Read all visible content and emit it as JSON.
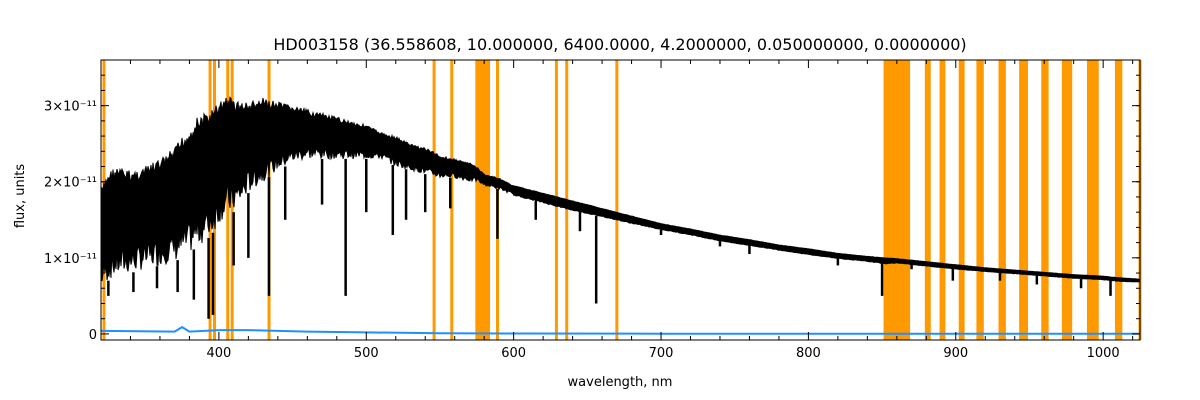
{
  "chart_data": {
    "type": "line",
    "title": "HD003158    (36.558608, 10.000000, 6400.0000, 4.2000000, 0.050000000, 0.0000000)",
    "xlabel": "wavelength, nm",
    "ylabel": "flux, units",
    "xlim": [
      320,
      1025
    ],
    "ylim": [
      -8e-13,
      3.6e-11
    ],
    "x_ticks": [
      {
        "value": 400,
        "label": "400"
      },
      {
        "value": 500,
        "label": "500"
      },
      {
        "value": 600,
        "label": "600"
      },
      {
        "value": 700,
        "label": "700"
      },
      {
        "value": 800,
        "label": "800"
      },
      {
        "value": 900,
        "label": "900"
      },
      {
        "value": 1000,
        "label": "1000"
      }
    ],
    "y_ticks": [
      {
        "value": 0,
        "label": "0"
      },
      {
        "value": 1e-11,
        "label": "1×10⁻¹¹"
      },
      {
        "value": 2e-11,
        "label": "2×10⁻¹¹"
      },
      {
        "value": 3e-11,
        "label": "3×10⁻¹¹"
      }
    ],
    "colors": {
      "flux": "#000000",
      "error": "#1e90ff",
      "mask": "#ff9900"
    },
    "series": [
      {
        "key": "flux",
        "x": [
          320,
          325,
          330,
          340,
          350,
          360,
          370,
          375,
          380,
          385,
          390,
          395,
          400,
          405,
          410,
          415,
          420,
          430,
          440,
          450,
          460,
          470,
          480,
          490,
          500,
          510,
          520,
          530,
          540,
          550,
          560,
          570,
          575,
          580,
          590,
          600,
          620,
          640,
          660,
          680,
          700,
          720,
          740,
          760,
          780,
          800,
          820,
          840,
          852,
          860,
          870,
          880,
          900,
          920,
          940,
          960,
          980,
          1000,
          1010,
          1025
        ],
        "upper": [
          1.9e-11,
          2.15e-11,
          2.2e-11,
          2.15e-11,
          2.2e-11,
          2.3e-11,
          2.45e-11,
          2.6e-11,
          2.7e-11,
          2.85e-11,
          2.9e-11,
          2.95e-11,
          3.05e-11,
          3.15e-11,
          3.1e-11,
          3.05e-11,
          3.05e-11,
          3.1e-11,
          3.05e-11,
          3e-11,
          2.95e-11,
          2.9e-11,
          2.85e-11,
          2.8e-11,
          2.75e-11,
          2.65e-11,
          2.6e-11,
          2.5e-11,
          2.45e-11,
          2.35e-11,
          2.3e-11,
          2.25e-11,
          2.2e-11,
          2.1e-11,
          2.05e-11,
          1.95e-11,
          1.85e-11,
          1.75e-11,
          1.65e-11,
          1.55e-11,
          1.45e-11,
          1.38e-11,
          1.3e-11,
          1.24e-11,
          1.17e-11,
          1.12e-11,
          1.06e-11,
          1.02e-11,
          1e-11,
          9.9e-12,
          9.7e-12,
          9.5e-12,
          9.1e-12,
          8.7e-12,
          8.4e-12,
          8.1e-12,
          7.8e-12,
          7.6e-12,
          7.4e-12,
          7.2e-12
        ],
        "lower": [
          6e-12,
          7e-12,
          7.5e-12,
          8e-12,
          8.5e-12,
          9e-12,
          9.5e-12,
          1e-11,
          1.05e-11,
          1.15e-11,
          1.2e-11,
          1.3e-11,
          1.45e-11,
          1.55e-11,
          1.6e-11,
          1.7e-11,
          1.85e-11,
          2e-11,
          2.15e-11,
          2.25e-11,
          2.3e-11,
          2.3e-11,
          2.3e-11,
          2.3e-11,
          2.3e-11,
          2.3e-11,
          2.2e-11,
          2.15e-11,
          2.1e-11,
          2.05e-11,
          2.05e-11,
          2e-11,
          2e-11,
          1.95e-11,
          1.9e-11,
          1.82e-11,
          1.72e-11,
          1.62e-11,
          1.54e-11,
          1.45e-11,
          1.37e-11,
          1.3e-11,
          1.22e-11,
          1.16e-11,
          1.1e-11,
          1.04e-11,
          9.9e-12,
          9.5e-12,
          9.2e-12,
          9.3e-12,
          9.1e-12,
          8.9e-12,
          8.5e-12,
          8.2e-12,
          7.9e-12,
          7.6e-12,
          7.3e-12,
          7.1e-12,
          6.9e-12,
          6.8e-12
        ]
      },
      {
        "key": "error",
        "x": [
          320,
          370,
          375,
          380,
          400,
          420,
          440,
          460,
          500,
          550,
          600,
          700,
          800,
          852
        ],
        "y": [
          4e-13,
          3e-13,
          9e-13,
          3e-13,
          5e-13,
          5e-13,
          4e-13,
          3e-13,
          2e-13,
          1e-13,
          5e-14,
          3e-14,
          2e-14,
          2e-14
        ]
      }
    ],
    "absorption_lines": [
      {
        "x": 325,
        "y": 5e-12
      },
      {
        "x": 342,
        "y": 5.5e-12
      },
      {
        "x": 358,
        "y": 6e-12
      },
      {
        "x": 372,
        "y": 5.5e-12
      },
      {
        "x": 383,
        "y": 4.5e-12
      },
      {
        "x": 393,
        "y": 2e-12
      },
      {
        "x": 396,
        "y": 2.5e-12
      },
      {
        "x": 410,
        "y": 9e-12
      },
      {
        "x": 420,
        "y": 1e-11
      },
      {
        "x": 434,
        "y": 5e-12
      },
      {
        "x": 445,
        "y": 1.5e-11
      },
      {
        "x": 470,
        "y": 1.7e-11
      },
      {
        "x": 486,
        "y": 5e-12
      },
      {
        "x": 500,
        "y": 1.6e-11
      },
      {
        "x": 518,
        "y": 1.3e-11
      },
      {
        "x": 527,
        "y": 1.5e-11
      },
      {
        "x": 540,
        "y": 1.6e-11
      },
      {
        "x": 557,
        "y": 1.65e-11
      },
      {
        "x": 589,
        "y": 1.25e-11
      },
      {
        "x": 615,
        "y": 1.5e-11
      },
      {
        "x": 645,
        "y": 1.35e-11
      },
      {
        "x": 656,
        "y": 4e-12
      },
      {
        "x": 700,
        "y": 1.3e-11
      },
      {
        "x": 740,
        "y": 1.15e-11
      },
      {
        "x": 760,
        "y": 1.05e-11
      },
      {
        "x": 820,
        "y": 9e-12
      },
      {
        "x": 850,
        "y": 5e-12
      },
      {
        "x": 870,
        "y": 8.5e-12
      },
      {
        "x": 898,
        "y": 7e-12
      },
      {
        "x": 930,
        "y": 7e-12
      },
      {
        "x": 955,
        "y": 6.5e-12
      },
      {
        "x": 985,
        "y": 6e-12
      },
      {
        "x": 1005,
        "y": 5e-12
      }
    ],
    "masked_regions": [
      [
        321,
        322
      ],
      [
        393,
        395
      ],
      [
        396,
        398
      ],
      [
        405,
        406
      ],
      [
        408,
        410
      ],
      [
        433,
        435
      ],
      [
        545,
        546
      ],
      [
        557,
        558
      ],
      [
        574,
        584
      ],
      [
        588,
        590
      ],
      [
        628,
        630
      ],
      [
        635,
        637
      ],
      [
        669,
        671
      ],
      [
        851,
        869
      ],
      [
        879,
        883
      ],
      [
        889,
        893
      ],
      [
        902,
        906
      ],
      [
        914,
        919
      ],
      [
        929,
        934
      ],
      [
        943,
        949
      ],
      [
        958,
        963
      ],
      [
        972,
        979
      ],
      [
        989,
        997
      ],
      [
        1008,
        1013
      ],
      [
        1024,
        1025
      ]
    ]
  }
}
